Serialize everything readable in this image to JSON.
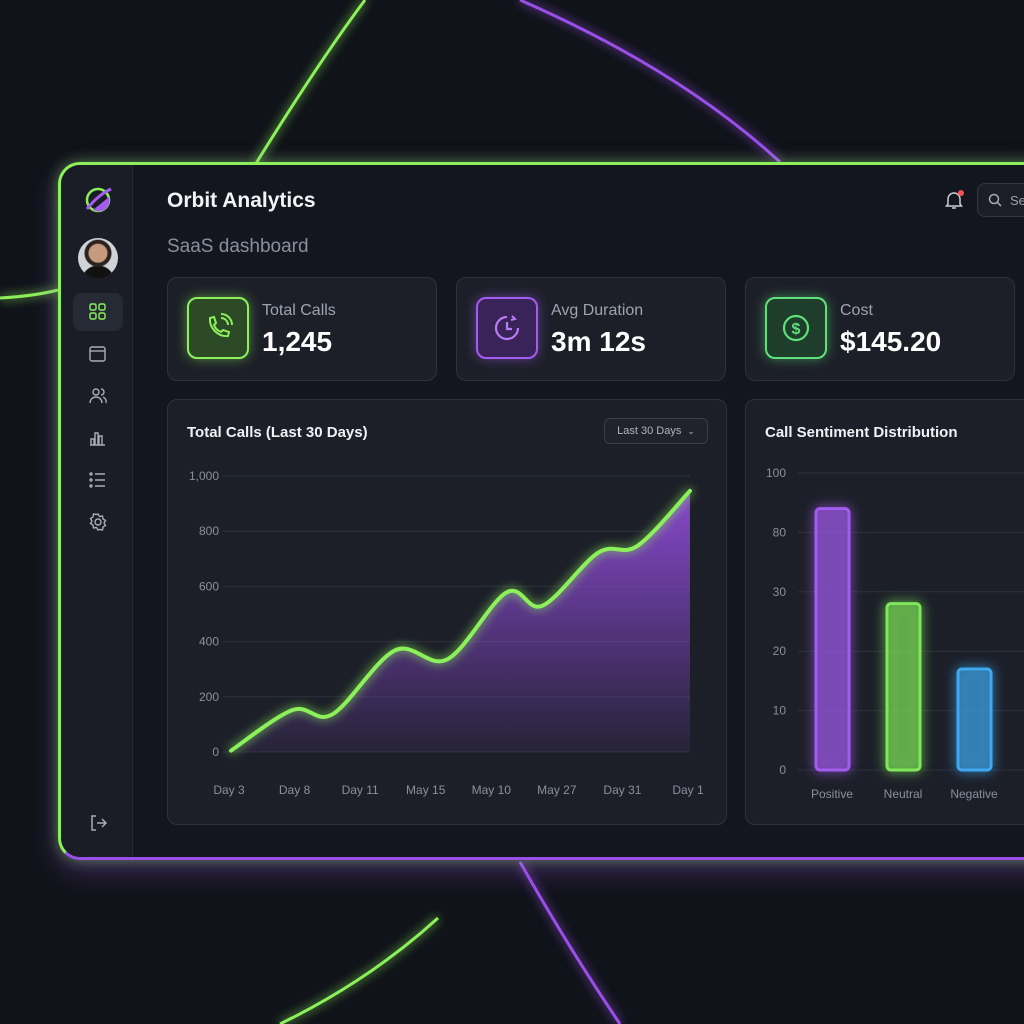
{
  "app": {
    "title": "Orbit Analytics",
    "subtitle": "SaaS dashboard"
  },
  "header": {
    "search_placeholder": "Se",
    "notification_dot": true
  },
  "sidebar": {
    "items": [
      {
        "icon": "dashboard-grid-icon",
        "active": true
      },
      {
        "icon": "calendar-icon"
      },
      {
        "icon": "users-icon"
      },
      {
        "icon": "bar-chart-icon"
      },
      {
        "icon": "list-icon"
      },
      {
        "icon": "gear-icon"
      }
    ],
    "logout_icon": "logout-icon"
  },
  "stats": [
    {
      "label": "Total Calls",
      "value": "1,245",
      "icon": "phone-icon",
      "color": "#8cf05a"
    },
    {
      "label": "Avg Duration",
      "value": "3m 12s",
      "icon": "clock-icon",
      "color": "#a35cf0"
    },
    {
      "label": "Cost",
      "value": "$145.20",
      "icon": "dollar-icon",
      "color": "#5fe07a"
    }
  ],
  "colors": {
    "green": "#8cf05a",
    "purple": "#9a4fe8",
    "blue": "#3ea9f0",
    "red": "#e0405a"
  },
  "chart_data": [
    {
      "type": "area",
      "title": "Total Calls (Last 30 Days)",
      "dropdown": "Last 30 Days",
      "categories": [
        "Day 3",
        "Day 8",
        "Day 11",
        "May 15",
        "May 10",
        "May 27",
        "Day 31",
        "Day 1"
      ],
      "yticks": [
        "0",
        "200",
        "400",
        "600",
        "800",
        "1,000"
      ],
      "ylim": [
        0,
        1000
      ],
      "grid": true,
      "points": [
        [
          0,
          5
        ],
        [
          0.94,
          152
        ],
        [
          1.55,
          137
        ],
        [
          2.5,
          368
        ],
        [
          3.3,
          336
        ],
        [
          4.2,
          578
        ],
        [
          4.75,
          530
        ],
        [
          5.6,
          722
        ],
        [
          6.2,
          747
        ],
        [
          7,
          946
        ]
      ]
    },
    {
      "type": "bar",
      "title": "Call Sentiment Distribution",
      "yticks": [
        "0",
        "10",
        "20",
        "30",
        "80",
        "100"
      ],
      "grid": true,
      "categories": [
        "Positive",
        "Neutral",
        "Negative"
      ],
      "values": [
        88,
        28,
        17
      ],
      "colors": [
        "#a35cf0",
        "#7ee85a",
        "#3ea9f0"
      ]
    }
  ]
}
